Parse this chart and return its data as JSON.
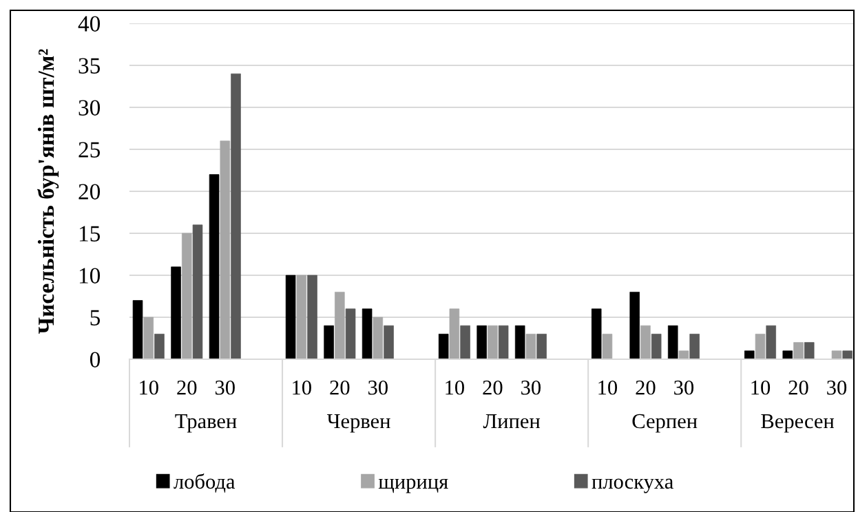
{
  "chart_data": {
    "type": "bar",
    "ylabel": "Чисельність бур'янів шт/м²",
    "categories": [
      "10",
      "20",
      "30",
      null,
      "10",
      "20",
      "30",
      null,
      "10",
      "20",
      "30",
      null,
      "10",
      "20",
      "30",
      null,
      "10",
      "20",
      "30"
    ],
    "annotations": [
      "Травен",
      "Червен",
      "Липен",
      "Серпен",
      "Вересен"
    ],
    "series": [
      {
        "name": "лобода",
        "color": "#000000",
        "values": [
          7,
          11,
          22,
          null,
          10,
          4,
          6,
          null,
          3,
          4,
          4,
          null,
          6,
          8,
          4,
          null,
          1,
          1,
          0
        ]
      },
      {
        "name": "щириця",
        "color": "#a6a6a6",
        "values": [
          5,
          15,
          26,
          null,
          10,
          8,
          5,
          null,
          6,
          4,
          3,
          null,
          3,
          4,
          1,
          null,
          3,
          2,
          1
        ]
      },
      {
        "name": "плоскуха",
        "color": "#595959",
        "values": [
          3,
          16,
          34,
          null,
          10,
          6,
          4,
          null,
          4,
          4,
          3,
          null,
          0,
          3,
          3,
          null,
          4,
          2,
          1
        ]
      }
    ],
    "ylim": [
      0,
      40
    ],
    "yticks": [
      0,
      5,
      10,
      15,
      20,
      25,
      30,
      35,
      40
    ],
    "grid": "y",
    "legend": "bottom"
  }
}
